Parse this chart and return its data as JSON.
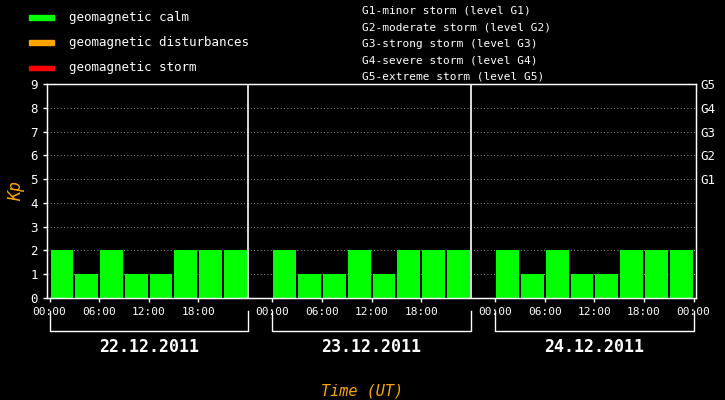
{
  "background_color": "#000000",
  "bar_color_calm": "#00ff00",
  "bar_color_disturb": "#ffa500",
  "bar_color_storm": "#ff0000",
  "kp_values": [
    2,
    1,
    2,
    1,
    1,
    2,
    2,
    2,
    2,
    1,
    1,
    2,
    1,
    2,
    2,
    2,
    2,
    1,
    2,
    1,
    1,
    2,
    2,
    2
  ],
  "days": [
    "22.12.2011",
    "23.12.2011",
    "24.12.2011"
  ],
  "xlabel": "Time (UT)",
  "ylabel": "Kp",
  "yticks": [
    0,
    1,
    2,
    3,
    4,
    5,
    6,
    7,
    8,
    9
  ],
  "ylim": [
    0,
    9
  ],
  "right_labels": [
    [
      5,
      "G1"
    ],
    [
      6,
      "G2"
    ],
    [
      7,
      "G3"
    ],
    [
      8,
      "G4"
    ],
    [
      9,
      "G5"
    ]
  ],
  "legend_items": [
    {
      "label": "geomagnetic calm",
      "color": "#00ff00"
    },
    {
      "label": "geomagnetic disturbances",
      "color": "#ffa500"
    },
    {
      "label": "geomagnetic storm",
      "color": "#ff0000"
    }
  ],
  "storm_legend_text": [
    "G1-minor storm (level G1)",
    "G2-moderate storm (level G2)",
    "G3-strong storm (level G3)",
    "G4-severe storm (level G4)",
    "G5-extreme storm (level G5)"
  ],
  "xtick_labels_per_day": [
    "00:00",
    "06:00",
    "12:00",
    "18:00"
  ],
  "final_tick": "00:00",
  "text_color": "#ffffff",
  "orange_color": "#ffa500",
  "font_family": "monospace",
  "legend_fontsize": 9,
  "storm_text_fontsize": 8,
  "axis_fontsize": 9,
  "day_fontsize": 12,
  "xlabel_fontsize": 11,
  "ylabel_fontsize": 12
}
